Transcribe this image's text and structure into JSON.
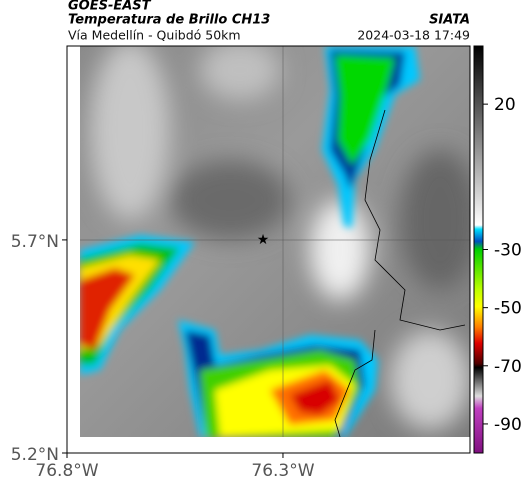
{
  "header": {
    "title": "GOES-EAST",
    "subtitle": "Temperatura de Brillo CH13",
    "region": "Vía Medellín - Quibdó 50km",
    "agency": "SIATA",
    "datetime": "2024-03-18 17:49"
  },
  "map": {
    "lat_range": [
      5.2,
      6.155
    ],
    "lon_range": [
      -76.8,
      -75.867
    ],
    "lat_ticks": [
      {
        "value": 5.7,
        "label": "5.7°N"
      },
      {
        "value": 5.2,
        "label": "5.2°N"
      }
    ],
    "lon_ticks": [
      {
        "value": -76.8,
        "label": "76.8°W"
      },
      {
        "value": -76.3,
        "label": "76.3°W"
      }
    ]
  },
  "colorbar": {
    "range": [
      40,
      -100
    ],
    "ticks": [
      20,
      -30,
      -50,
      -70,
      -90
    ]
  }
}
